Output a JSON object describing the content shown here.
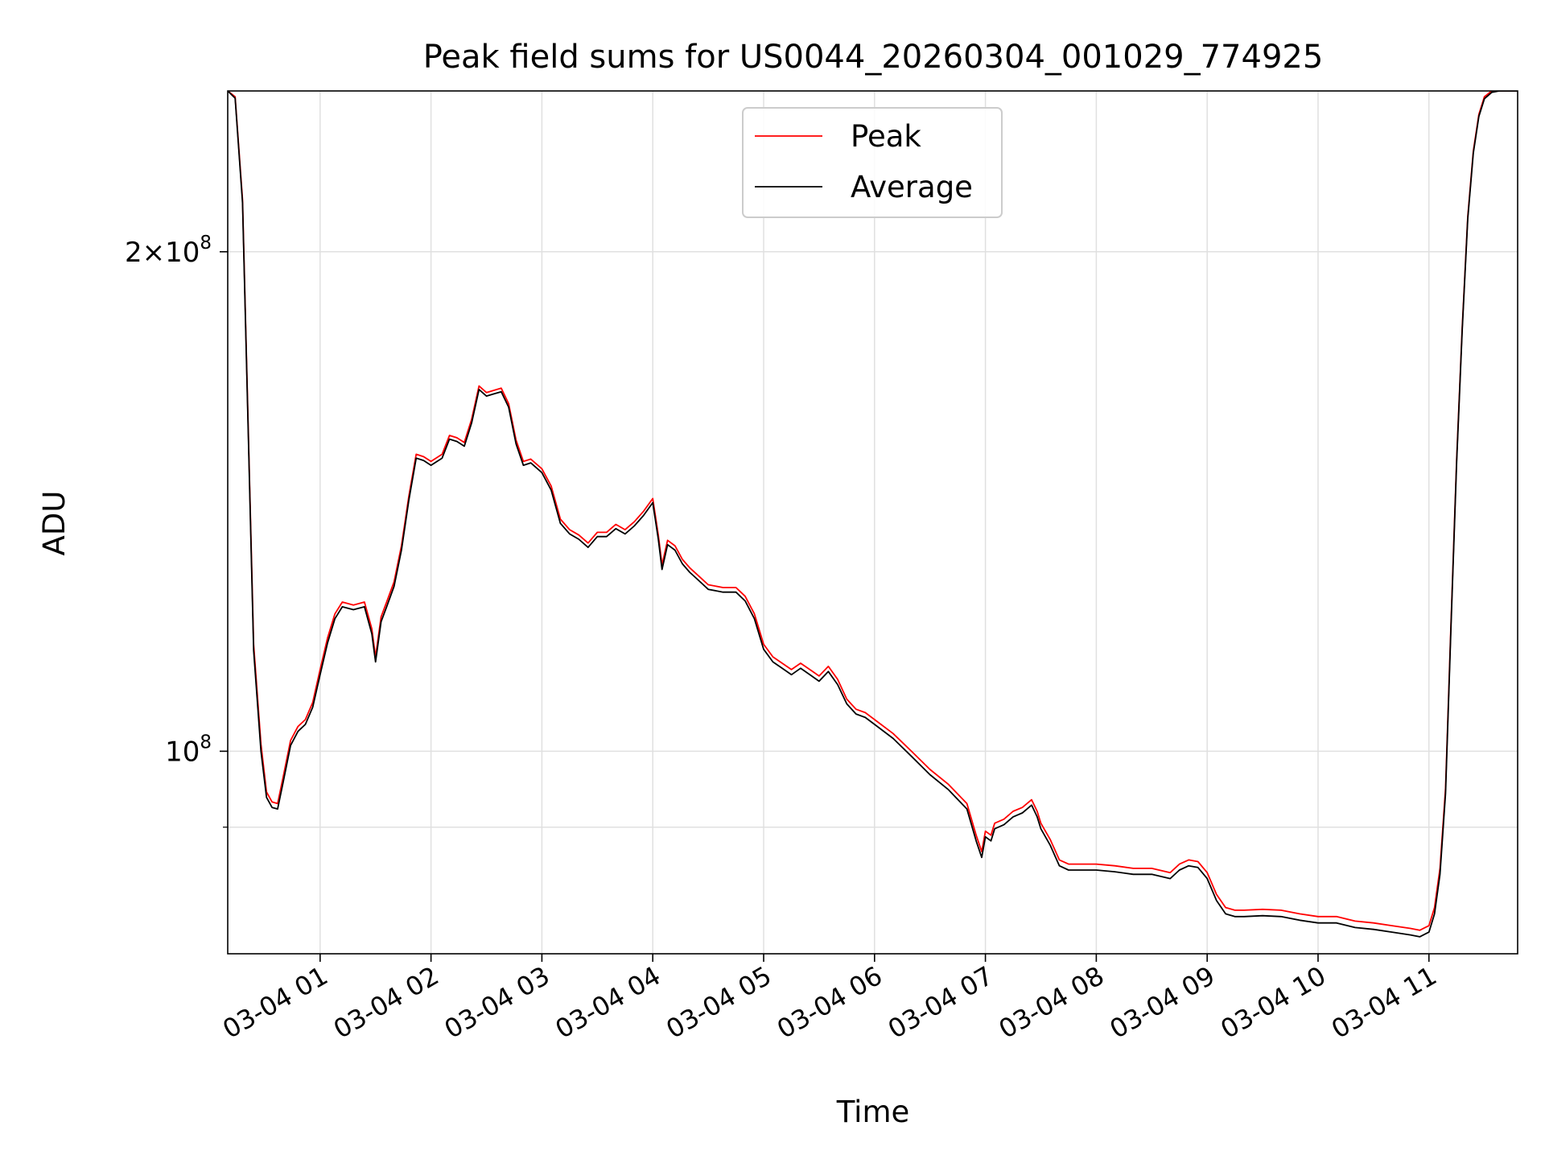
{
  "chart_data": {
    "type": "line",
    "title": "Peak field sums for US0044_20260304_001029_774925",
    "xlabel": "Time",
    "ylabel": "ADU",
    "yscale": "log",
    "ylim": [
      75500000,
      250000000
    ],
    "xlim": [
      "03-04 00:10",
      "03-04 11:48"
    ],
    "grid": true,
    "legend_position": "top-center",
    "x_ticks": [
      {
        "x": "03-04 01:00",
        "label": "03-04 01"
      },
      {
        "x": "03-04 02:00",
        "label": "03-04 02"
      },
      {
        "x": "03-04 03:00",
        "label": "03-04 03"
      },
      {
        "x": "03-04 04:00",
        "label": "03-04 04"
      },
      {
        "x": "03-04 05:00",
        "label": "03-04 05"
      },
      {
        "x": "03-04 06:00",
        "label": "03-04 06"
      },
      {
        "x": "03-04 07:00",
        "label": "03-04 07"
      },
      {
        "x": "03-04 08:00",
        "label": "03-04 08"
      },
      {
        "x": "03-04 09:00",
        "label": "03-04 09"
      },
      {
        "x": "03-04 10:00",
        "label": "03-04 10"
      },
      {
        "x": "03-04 11:00",
        "label": "03-04 11"
      }
    ],
    "y_ticks": [
      {
        "y": 100000000,
        "base": "10",
        "exp": "8",
        "coef": ""
      },
      {
        "y": 200000000,
        "base": "10",
        "exp": "8",
        "coef": "2"
      }
    ],
    "y_minor_ticks": [
      90000000
    ],
    "series": [
      {
        "name": "Peak",
        "color": "#ff0000",
        "x": [
          "03-04 00:10",
          "03-04 00:14",
          "03-04 00:18",
          "03-04 00:21",
          "03-04 00:24",
          "03-04 00:28",
          "03-04 00:31",
          "03-04 00:34",
          "03-04 00:37",
          "03-04 00:40",
          "03-04 00:44",
          "03-04 00:48",
          "03-04 00:52",
          "03-04 00:56",
          "03-04 01:00",
          "03-04 01:04",
          "03-04 01:08",
          "03-04 01:12",
          "03-04 01:18",
          "03-04 01:24",
          "03-04 01:28",
          "03-04 01:30",
          "03-04 01:33",
          "03-04 01:36",
          "03-04 01:40",
          "03-04 01:44",
          "03-04 01:48",
          "03-04 01:52",
          "03-04 01:56",
          "03-04 02:00",
          "03-04 02:06",
          "03-04 02:10",
          "03-04 02:14",
          "03-04 02:18",
          "03-04 02:22",
          "03-04 02:26",
          "03-04 02:30",
          "03-04 02:34",
          "03-04 02:38",
          "03-04 02:42",
          "03-04 02:46",
          "03-04 02:50",
          "03-04 02:54",
          "03-04 03:00",
          "03-04 03:05",
          "03-04 03:10",
          "03-04 03:15",
          "03-04 03:20",
          "03-04 03:25",
          "03-04 03:30",
          "03-04 03:35",
          "03-04 03:40",
          "03-04 03:45",
          "03-04 03:50",
          "03-04 03:55",
          "03-04 04:00",
          "03-04 04:03",
          "03-04 04:05",
          "03-04 04:08",
          "03-04 04:12",
          "03-04 04:16",
          "03-04 04:20",
          "03-04 04:25",
          "03-04 04:30",
          "03-04 04:38",
          "03-04 04:45",
          "03-04 04:50",
          "03-04 04:55",
          "03-04 05:00",
          "03-04 05:05",
          "03-04 05:10",
          "03-04 05:15",
          "03-04 05:20",
          "03-04 05:25",
          "03-04 05:30",
          "03-04 05:35",
          "03-04 05:40",
          "03-04 05:45",
          "03-04 05:50",
          "03-04 05:55",
          "03-04 06:00",
          "03-04 06:10",
          "03-04 06:20",
          "03-04 06:30",
          "03-04 06:40",
          "03-04 06:50",
          "03-04 06:55",
          "03-04 06:58",
          "03-04 07:00",
          "03-04 07:03",
          "03-04 07:05",
          "03-04 07:10",
          "03-04 07:15",
          "03-04 07:20",
          "03-04 07:25",
          "03-04 07:28",
          "03-04 07:30",
          "03-04 07:35",
          "03-04 07:40",
          "03-04 07:45",
          "03-04 07:50",
          "03-04 08:00",
          "03-04 08:10",
          "03-04 08:20",
          "03-04 08:30",
          "03-04 08:40",
          "03-04 08:45",
          "03-04 08:50",
          "03-04 08:55",
          "03-04 09:00",
          "03-04 09:05",
          "03-04 09:10",
          "03-04 09:15",
          "03-04 09:20",
          "03-04 09:30",
          "03-04 09:40",
          "03-04 09:50",
          "03-04 10:00",
          "03-04 10:10",
          "03-04 10:20",
          "03-04 10:30",
          "03-04 10:40",
          "03-04 10:50",
          "03-04 10:55",
          "03-04 11:00",
          "03-04 11:03",
          "03-04 11:06",
          "03-04 11:09",
          "03-04 11:12",
          "03-04 11:15",
          "03-04 11:18",
          "03-04 11:21",
          "03-04 11:24",
          "03-04 11:27",
          "03-04 11:30",
          "03-04 11:34",
          "03-04 11:38",
          "03-04 11:42",
          "03-04 11:48"
        ],
        "y": [
          250000000,
          248000000,
          215000000,
          158000000,
          116000000,
          101000000,
          94500000,
          93200000,
          93000000,
          96500000,
          101500000,
          103500000,
          104500000,
          107000000,
          112000000,
          117000000,
          121000000,
          123000000,
          122500000,
          123000000,
          118500000,
          114000000,
          120500000,
          123000000,
          126500000,
          133000000,
          142500000,
          151000000,
          150500000,
          149500000,
          151000000,
          155000000,
          154500000,
          153500000,
          158500000,
          166000000,
          164500000,
          165000000,
          165500000,
          162000000,
          154000000,
          149500000,
          150000000,
          148000000,
          144500000,
          138000000,
          136000000,
          135000000,
          133500000,
          135500000,
          135500000,
          137000000,
          136000000,
          137500000,
          139500000,
          142000000,
          135000000,
          129500000,
          134000000,
          133000000,
          130500000,
          129000000,
          127500000,
          126000000,
          125500000,
          125500000,
          124000000,
          121000000,
          116000000,
          114000000,
          113000000,
          112000000,
          113000000,
          112000000,
          111000000,
          112500000,
          110500000,
          107500000,
          106000000,
          105500000,
          104500000,
          102500000,
          100000000,
          97500000,
          95500000,
          93000000,
          89000000,
          87000000,
          89500000,
          89000000,
          90500000,
          91000000,
          92000000,
          92500000,
          93500000,
          92000000,
          90500000,
          88500000,
          86000000,
          85500000,
          85500000,
          85500000,
          85300000,
          85000000,
          85000000,
          84500000,
          85500000,
          86000000,
          85800000,
          84500000,
          82000000,
          80500000,
          80200000,
          80200000,
          80300000,
          80200000,
          79800000,
          79500000,
          79500000,
          79000000,
          78800000,
          78500000,
          78200000,
          78000000,
          78500000,
          80500000,
          85000000,
          95000000,
          120000000,
          150000000,
          180000000,
          210000000,
          230000000,
          242000000,
          248000000,
          250000000,
          250000000,
          250000000,
          250000000
        ]
      },
      {
        "name": "Average",
        "color": "#000000",
        "x": [
          "03-04 00:10",
          "03-04 00:14",
          "03-04 00:18",
          "03-04 00:21",
          "03-04 00:24",
          "03-04 00:28",
          "03-04 00:31",
          "03-04 00:34",
          "03-04 00:37",
          "03-04 00:40",
          "03-04 00:44",
          "03-04 00:48",
          "03-04 00:52",
          "03-04 00:56",
          "03-04 01:00",
          "03-04 01:04",
          "03-04 01:08",
          "03-04 01:12",
          "03-04 01:18",
          "03-04 01:24",
          "03-04 01:28",
          "03-04 01:30",
          "03-04 01:33",
          "03-04 01:36",
          "03-04 01:40",
          "03-04 01:44",
          "03-04 01:48",
          "03-04 01:52",
          "03-04 01:56",
          "03-04 02:00",
          "03-04 02:06",
          "03-04 02:10",
          "03-04 02:14",
          "03-04 02:18",
          "03-04 02:22",
          "03-04 02:26",
          "03-04 02:30",
          "03-04 02:34",
          "03-04 02:38",
          "03-04 02:42",
          "03-04 02:46",
          "03-04 02:50",
          "03-04 02:54",
          "03-04 03:00",
          "03-04 03:05",
          "03-04 03:10",
          "03-04 03:15",
          "03-04 03:20",
          "03-04 03:25",
          "03-04 03:30",
          "03-04 03:35",
          "03-04 03:40",
          "03-04 03:45",
          "03-04 03:50",
          "03-04 03:55",
          "03-04 04:00",
          "03-04 04:03",
          "03-04 04:05",
          "03-04 04:08",
          "03-04 04:12",
          "03-04 04:16",
          "03-04 04:20",
          "03-04 04:25",
          "03-04 04:30",
          "03-04 04:38",
          "03-04 04:45",
          "03-04 04:50",
          "03-04 04:55",
          "03-04 05:00",
          "03-04 05:05",
          "03-04 05:10",
          "03-04 05:15",
          "03-04 05:20",
          "03-04 05:25",
          "03-04 05:30",
          "03-04 05:35",
          "03-04 05:40",
          "03-04 05:45",
          "03-04 05:50",
          "03-04 05:55",
          "03-04 06:00",
          "03-04 06:10",
          "03-04 06:20",
          "03-04 06:30",
          "03-04 06:40",
          "03-04 06:50",
          "03-04 06:55",
          "03-04 06:58",
          "03-04 07:00",
          "03-04 07:03",
          "03-04 07:05",
          "03-04 07:10",
          "03-04 07:15",
          "03-04 07:20",
          "03-04 07:25",
          "03-04 07:28",
          "03-04 07:30",
          "03-04 07:35",
          "03-04 07:40",
          "03-04 07:45",
          "03-04 07:50",
          "03-04 08:00",
          "03-04 08:10",
          "03-04 08:20",
          "03-04 08:30",
          "03-04 08:40",
          "03-04 08:45",
          "03-04 08:50",
          "03-04 08:55",
          "03-04 09:00",
          "03-04 09:05",
          "03-04 09:10",
          "03-04 09:15",
          "03-04 09:20",
          "03-04 09:30",
          "03-04 09:40",
          "03-04 09:50",
          "03-04 10:00",
          "03-04 10:10",
          "03-04 10:20",
          "03-04 10:30",
          "03-04 10:40",
          "03-04 10:50",
          "03-04 10:55",
          "03-04 11:00",
          "03-04 11:03",
          "03-04 11:06",
          "03-04 11:09",
          "03-04 11:12",
          "03-04 11:15",
          "03-04 11:18",
          "03-04 11:21",
          "03-04 11:24",
          "03-04 11:27",
          "03-04 11:30",
          "03-04 11:34",
          "03-04 11:38",
          "03-04 11:42",
          "03-04 11:48"
        ],
        "y": [
          250000000,
          247500000,
          214000000,
          157000000,
          115000000,
          100000000,
          93800000,
          92500000,
          92300000,
          95800000,
          100800000,
          102800000,
          103800000,
          106300000,
          111200000,
          116200000,
          120200000,
          122200000,
          121700000,
          122200000,
          117700000,
          113200000,
          119700000,
          122200000,
          125700000,
          132200000,
          141700000,
          150200000,
          149700000,
          148700000,
          150200000,
          154200000,
          153700000,
          152700000,
          157700000,
          165200000,
          163700000,
          164200000,
          164700000,
          161200000,
          153200000,
          148700000,
          149200000,
          147200000,
          143700000,
          137200000,
          135200000,
          134200000,
          132700000,
          134700000,
          134700000,
          136200000,
          135200000,
          136700000,
          138700000,
          141200000,
          134200000,
          128700000,
          133200000,
          132200000,
          129700000,
          128200000,
          126700000,
          125200000,
          124700000,
          124700000,
          123200000,
          120200000,
          115200000,
          113200000,
          112200000,
          111200000,
          112200000,
          111200000,
          110200000,
          111700000,
          109700000,
          106800000,
          105300000,
          104800000,
          103800000,
          101800000,
          99300000,
          96800000,
          94800000,
          92300000,
          88300000,
          86300000,
          88800000,
          88300000,
          89800000,
          90300000,
          91300000,
          91800000,
          92800000,
          91300000,
          89800000,
          87800000,
          85300000,
          84800000,
          84800000,
          84800000,
          84600000,
          84300000,
          84300000,
          83800000,
          84800000,
          85300000,
          85100000,
          83800000,
          81300000,
          79800000,
          79500000,
          79500000,
          79600000,
          79500000,
          79100000,
          78800000,
          78800000,
          78300000,
          78100000,
          77800000,
          77500000,
          77300000,
          77800000,
          79800000,
          84300000,
          94300000,
          119300000,
          149300000,
          179300000,
          209300000,
          229300000,
          241300000,
          247300000,
          249500000,
          250000000,
          250000000,
          250000000
        ]
      }
    ]
  }
}
